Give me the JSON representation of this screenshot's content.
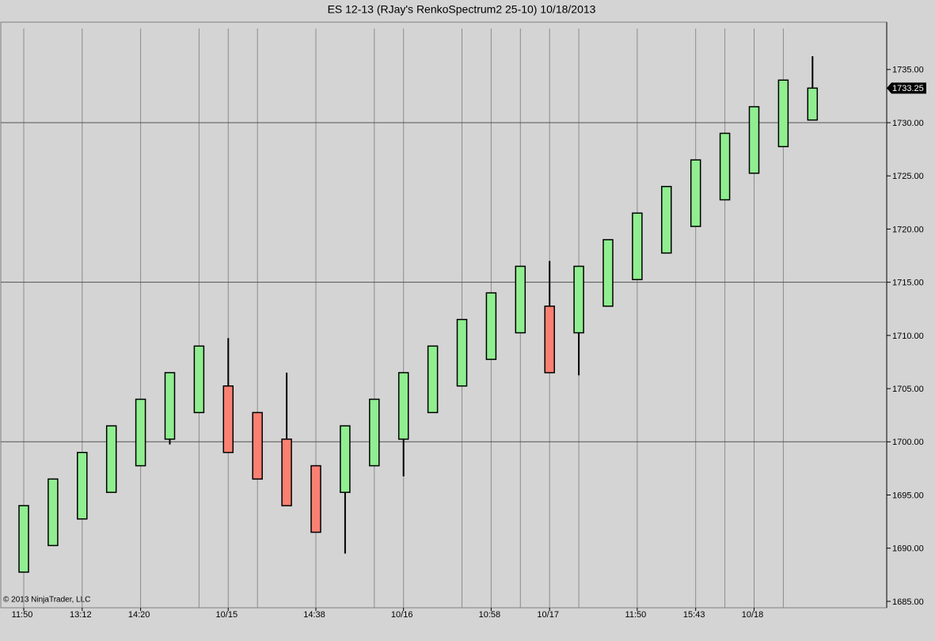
{
  "chart_data": {
    "type": "candlestick",
    "title": "ES 12-13 (RJay's RenkoSpectrum2  25-10)  10/18/2013",
    "copyright": "© 2013 NinjaTrader, LLC",
    "categories": [
      "11:50",
      null,
      "13:12",
      null,
      "14:20",
      null,
      null,
      "10/15",
      null,
      null,
      "14:38",
      null,
      null,
      "10/16",
      null,
      null,
      "10:58",
      null,
      "10/17",
      null,
      null,
      "11:50",
      null,
      "15:43",
      null,
      "10/18",
      null,
      null
    ],
    "open": [
      1687.75,
      1690.25,
      1692.75,
      1695.25,
      1697.75,
      1700.25,
      1702.75,
      1705.25,
      1702.75,
      1700.25,
      1697.75,
      1695.25,
      1697.75,
      1700.25,
      1702.75,
      1705.25,
      1707.75,
      1710.25,
      1712.75,
      1710.25,
      1712.75,
      1715.25,
      1717.75,
      1720.25,
      1722.75,
      1725.25,
      1727.75,
      1730.25
    ],
    "high": [
      1694.0,
      1696.5,
      1699.0,
      1701.5,
      1704.0,
      1706.5,
      1709.0,
      1709.75,
      1702.75,
      1706.5,
      1697.75,
      1701.5,
      1704.0,
      1706.5,
      1709.0,
      1711.5,
      1714.0,
      1716.5,
      1717.0,
      1716.5,
      1719.0,
      1721.5,
      1724.0,
      1726.5,
      1729.0,
      1731.5,
      1734.0,
      1736.25
    ],
    "low": [
      1687.75,
      1690.25,
      1692.75,
      1695.25,
      1697.75,
      1699.75,
      1702.75,
      1699.0,
      1696.5,
      1694.0,
      1691.5,
      1689.5,
      1697.75,
      1696.75,
      1702.75,
      1705.25,
      1707.75,
      1710.25,
      1706.5,
      1706.25,
      1712.75,
      1715.25,
      1717.75,
      1720.25,
      1722.75,
      1725.25,
      1727.75,
      1730.25
    ],
    "close": [
      1694.0,
      1696.5,
      1699.0,
      1701.5,
      1704.0,
      1706.5,
      1709.0,
      1699.0,
      1696.5,
      1694.0,
      1691.5,
      1701.5,
      1704.0,
      1706.5,
      1709.0,
      1711.5,
      1714.0,
      1716.5,
      1706.5,
      1716.5,
      1719.0,
      1721.5,
      1724.0,
      1726.5,
      1729.0,
      1731.5,
      1734.0,
      1733.25
    ],
    "up_color": "#90ee90",
    "down_color": "#fa8072",
    "last_price": 1733.25,
    "ylim": [
      1684.4,
      1739.45
    ],
    "yticks": [
      {
        "value": 1685,
        "label": "1685.00"
      },
      {
        "value": 1690,
        "label": "1690.00"
      },
      {
        "value": 1695,
        "label": "1695.00"
      },
      {
        "value": 1700,
        "label": "1700.00"
      },
      {
        "value": 1705,
        "label": "1705.00"
      },
      {
        "value": 1710,
        "label": "1710.00"
      },
      {
        "value": 1715,
        "label": "1715.00"
      },
      {
        "value": 1720,
        "label": "1720.00"
      },
      {
        "value": 1725,
        "label": "1725.00"
      },
      {
        "value": 1730,
        "label": "1730.00"
      },
      {
        "value": 1735,
        "label": "1735.00"
      }
    ],
    "grid": true
  }
}
